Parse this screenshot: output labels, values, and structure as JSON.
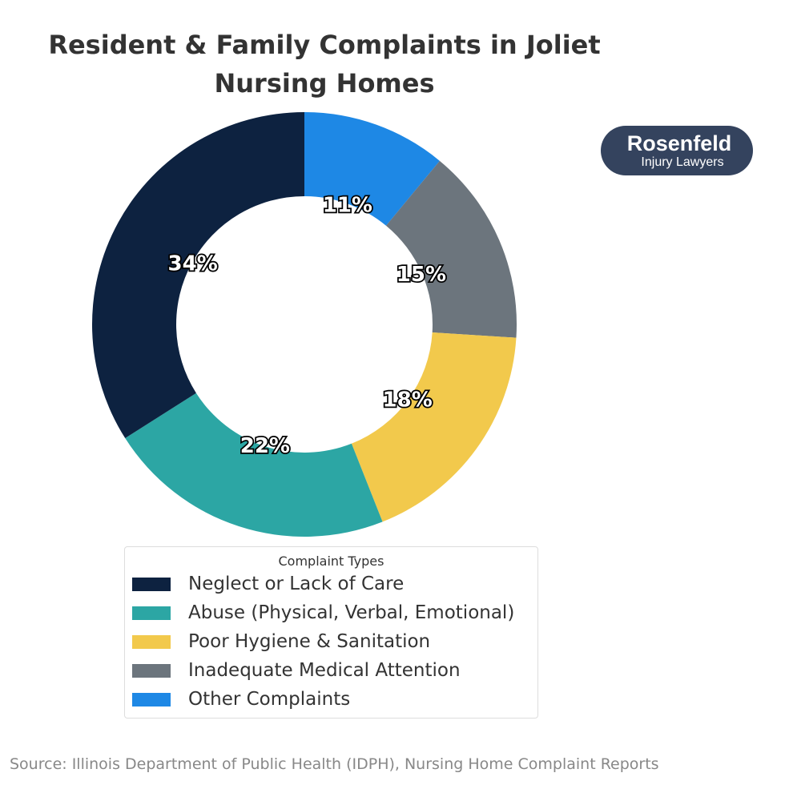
{
  "chart_data": {
    "type": "pie",
    "donut": true,
    "title": "Resident & Family Complaints in Joliet Nursing Homes",
    "legend_title": "Complaint Types",
    "legend_placement": "bottom",
    "start": "top",
    "direction": "clockwise",
    "slices": [
      {
        "label": "Other Complaints",
        "value": 11,
        "display": "11%",
        "color": "#1e88e5"
      },
      {
        "label": "Inadequate Medical Attention",
        "value": 15,
        "display": "15%",
        "color": "#6c757d"
      },
      {
        "label": "Poor Hygiene & Sanitation",
        "value": 18,
        "display": "18%",
        "color": "#f2c94c"
      },
      {
        "label": "Abuse (Physical, Verbal, Emotional)",
        "value": 22,
        "display": "22%",
        "color": "#2ca6a4"
      },
      {
        "label": "Neglect or Lack of Care",
        "value": 34,
        "display": "34%",
        "color": "#0d2240"
      }
    ],
    "legend_order": [
      4,
      3,
      2,
      1,
      0
    ]
  },
  "logo": {
    "line1": "Rosenfeld",
    "line2": "Injury Lawyers"
  },
  "source": "Source: Illinois Department of Public Health (IDPH), Nursing Home Complaint Reports"
}
